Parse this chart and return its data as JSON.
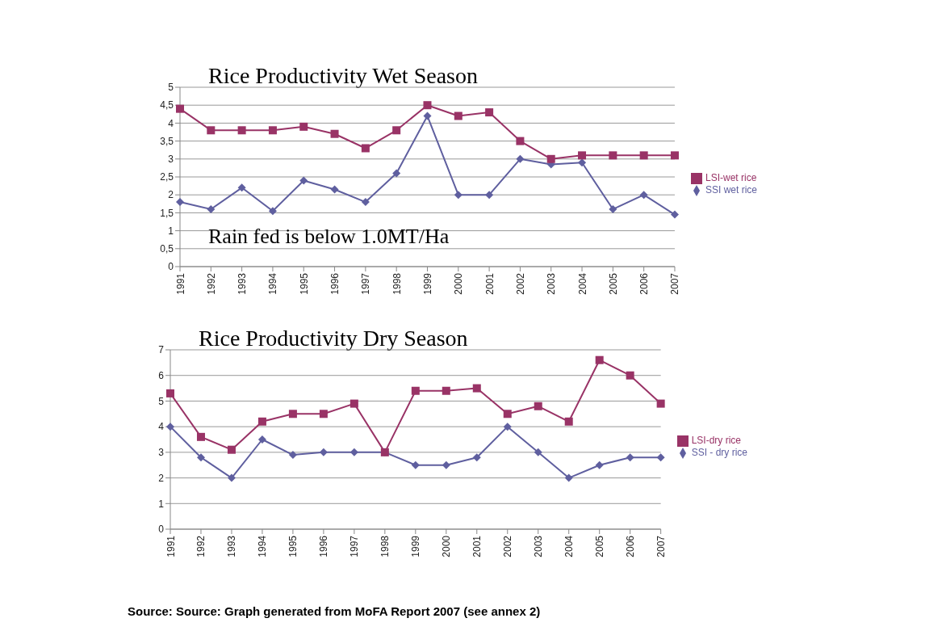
{
  "chart_data": [
    {
      "type": "line",
      "title": "Rice Productivity Wet Season",
      "categories": [
        "1991",
        "1992",
        "1993",
        "1994",
        "1995",
        "1996",
        "1997",
        "1998",
        "1999",
        "2000",
        "2001",
        "2002",
        "2003",
        "2004",
        "2005",
        "2006",
        "2007"
      ],
      "series": [
        {
          "name": "SSI wet rice",
          "color": "#5f5f9f",
          "marker": "diamond",
          "values": [
            1.8,
            1.6,
            2.2,
            1.55,
            2.4,
            2.15,
            1.8,
            2.6,
            4.2,
            2.0,
            2.0,
            3.0,
            2.85,
            2.9,
            1.6,
            2.0,
            1.45
          ]
        },
        {
          "name": "LSI-wet rice",
          "color": "#993366",
          "marker": "square",
          "values": [
            4.4,
            3.8,
            3.8,
            3.8,
            3.9,
            3.7,
            3.3,
            3.8,
            4.5,
            4.2,
            4.3,
            3.5,
            3.0,
            3.1,
            3.1,
            3.1,
            3.1
          ]
        }
      ],
      "ylim": [
        0,
        5
      ],
      "yticks": [
        0,
        {
          "value": 0.5,
          "label": "0,5"
        },
        1,
        {
          "value": 1.5,
          "label": "1,5"
        },
        2,
        {
          "value": 2.5,
          "label": "2,5"
        },
        3,
        {
          "value": 3.5,
          "label": "3,5"
        },
        4,
        {
          "value": 4.5,
          "label": "4,5"
        },
        5
      ],
      "grid": "y",
      "legend": "right",
      "annotations": [
        "Rain fed is below 1.0MT/Ha"
      ]
    },
    {
      "type": "line",
      "title": "Rice Productivity Dry Season",
      "categories": [
        "1991",
        "1992",
        "1993",
        "1994",
        "1995",
        "1996",
        "1997",
        "1998",
        "1999",
        "2000",
        "2001",
        "2002",
        "2003",
        "2004",
        "2005",
        "2006",
        "2007"
      ],
      "series": [
        {
          "name": "SSI - dry rice",
          "color": "#5f5f9f",
          "marker": "diamond",
          "values": [
            4.0,
            2.8,
            2.0,
            3.5,
            2.9,
            3.0,
            3.0,
            3.0,
            2.5,
            2.5,
            2.8,
            4.0,
            3.0,
            2.0,
            2.5,
            2.8,
            2.8
          ]
        },
        {
          "name": "LSI-dry rice",
          "color": "#993366",
          "marker": "square",
          "values": [
            5.3,
            3.6,
            3.1,
            4.2,
            4.5,
            4.5,
            4.9,
            3.0,
            5.4,
            5.4,
            5.5,
            4.5,
            4.8,
            4.2,
            6.6,
            6.0,
            4.9
          ]
        }
      ],
      "ylim": [
        0,
        7
      ],
      "yticks": [
        0,
        1,
        2,
        3,
        4,
        5,
        6,
        7
      ],
      "grid": "y",
      "legend": "right",
      "annotations": [
        "Source: Source: Graph generated from MoFA Report 2007 (see annex 2)"
      ]
    }
  ]
}
